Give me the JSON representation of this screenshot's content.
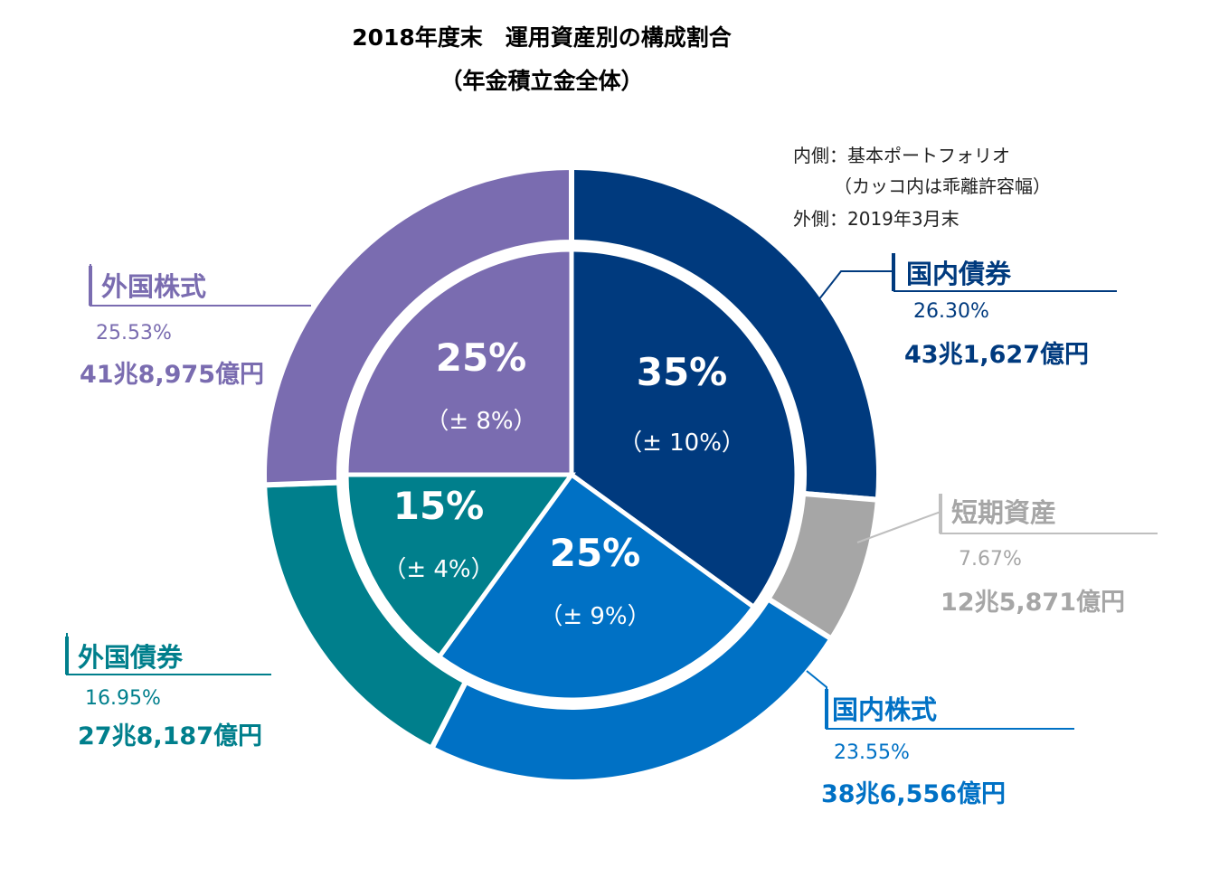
{
  "header": {
    "title": "2018年度末　運用資産別の構成割合",
    "subtitle": "（年金積立金全体）"
  },
  "legend_note": {
    "line1": "内側：基本ポートフォリオ",
    "line2": "（カッコ内は乖離許容幅）",
    "line3": "外側：2019年3月末"
  },
  "chart_data": {
    "type": "pie",
    "subtype": "double-donut",
    "inner": {
      "description_label": "内側：基本ポートフォリオ",
      "slices": [
        {
          "name": "国内債券",
          "value": 35,
          "label": "35%",
          "tolerance": "（± 10%）",
          "color": "#003a7e"
        },
        {
          "name": "国内株式",
          "value": 25,
          "label": "25%",
          "tolerance": "（± 9%）",
          "color": "#0071c5"
        },
        {
          "name": "外国債券",
          "value": 15,
          "label": "15%",
          "tolerance": "（± 4%）",
          "color": "#007f8c"
        },
        {
          "name": "外国株式",
          "value": 25,
          "label": "25%",
          "tolerance": "（± 8%）",
          "color": "#7a6cb0"
        }
      ]
    },
    "outer": {
      "description_label": "外側：2019年3月末",
      "slices": [
        {
          "name": "国内債券",
          "value": 26.3,
          "percent": "26.30%",
          "amount": "43兆1,627億円",
          "color": "#003a7e"
        },
        {
          "name": "短期資産",
          "value": 7.67,
          "percent": "7.67%",
          "amount": "12兆5,871億円",
          "color": "#a6a6a6"
        },
        {
          "name": "国内株式",
          "value": 23.55,
          "percent": "23.55%",
          "amount": "38兆6,556億円",
          "color": "#0071c5"
        },
        {
          "name": "外国債券",
          "value": 16.95,
          "percent": "16.95%",
          "amount": "27兆8,187億円",
          "color": "#007f8c"
        },
        {
          "name": "外国株式",
          "value": 25.53,
          "percent": "25.53%",
          "amount": "41兆8,975億円",
          "color": "#7a6cb0"
        }
      ]
    }
  },
  "labels": {
    "domestic_bonds": {
      "name": "国内債券",
      "percent": "26.30%",
      "amount": "43兆1,627億円"
    },
    "short_term": {
      "name": "短期資産",
      "percent": "7.67%",
      "amount": "12兆5,871億円"
    },
    "domestic_stocks": {
      "name": "国内株式",
      "percent": "23.55%",
      "amount": "38兆6,556億円"
    },
    "foreign_bonds": {
      "name": "外国債券",
      "percent": "16.95%",
      "amount": "27兆8,187億円"
    },
    "foreign_stocks": {
      "name": "外国株式",
      "percent": "25.53%",
      "amount": "41兆8,975億円"
    }
  }
}
